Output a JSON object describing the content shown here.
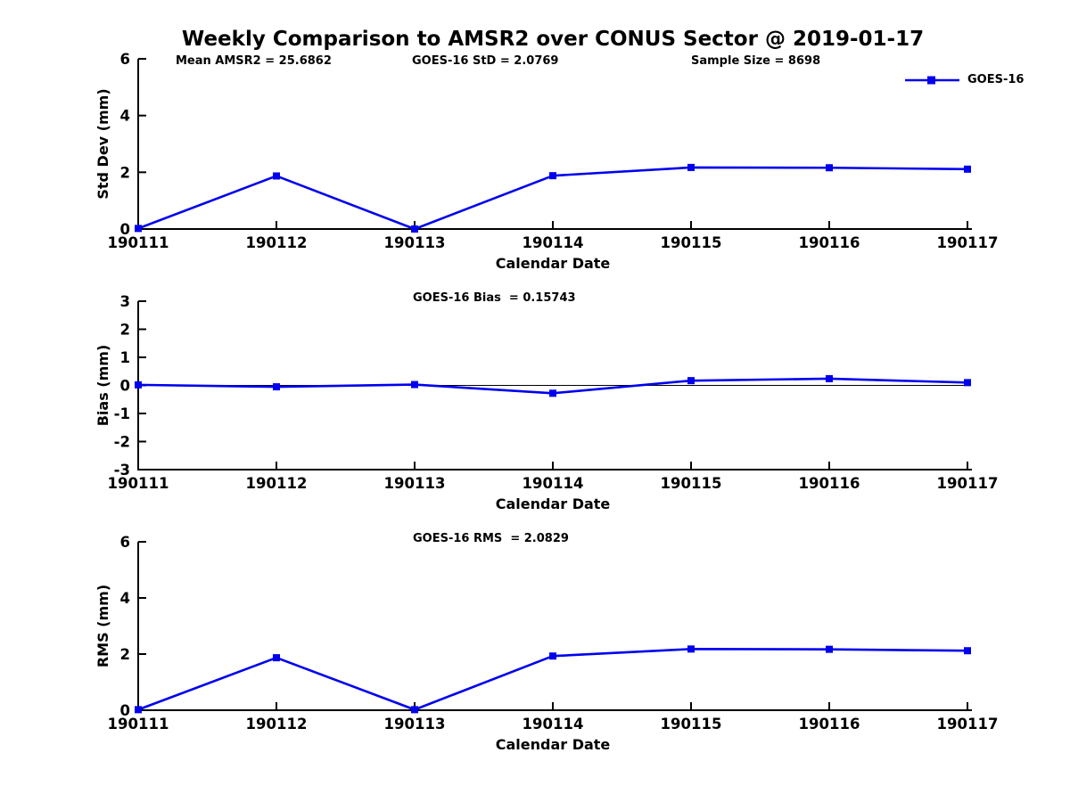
{
  "figure": {
    "title": "Weekly Comparison to AMSR2 over CONUS Sector @ 2019-01-17"
  },
  "colors": {
    "series": "#0000ee",
    "axis": "#000000",
    "text": "#000000",
    "background": "#ffffff"
  },
  "legend": {
    "label": "GOES-16",
    "marker": "filled-square"
  },
  "chart_data": [
    {
      "type": "line",
      "name": "std-dev",
      "annotations": [
        "Mean AMSR2 = 25.6862",
        "GOES-16 StD = 2.0769",
        "Sample Size = 8698"
      ],
      "ylabel": "Std Dev (mm)",
      "xlabel": "Calendar Date",
      "categories": [
        "190111",
        "190112",
        "190113",
        "190114",
        "190115",
        "190116",
        "190117"
      ],
      "series": [
        {
          "name": "GOES-16",
          "values": [
            0.02,
            1.87,
            0.0,
            1.88,
            2.17,
            2.16,
            2.11
          ]
        }
      ],
      "ylim": [
        0,
        6
      ],
      "yticks": [
        0,
        2,
        4,
        6
      ],
      "zero_line": false,
      "grid": false,
      "legend_position": "top-right-outside"
    },
    {
      "type": "line",
      "name": "bias",
      "annotations": [
        "GOES-16 Bias  = 0.15743"
      ],
      "ylabel": "Bias (mm)",
      "xlabel": "Calendar Date",
      "categories": [
        "190111",
        "190112",
        "190113",
        "190114",
        "190115",
        "190116",
        "190117"
      ],
      "series": [
        {
          "name": "GOES-16",
          "values": [
            0.02,
            -0.05,
            0.03,
            -0.28,
            0.17,
            0.24,
            0.1
          ]
        }
      ],
      "ylim": [
        -3,
        3
      ],
      "yticks": [
        -3,
        -2,
        -1,
        0,
        1,
        2,
        3
      ],
      "zero_line": true,
      "grid": false
    },
    {
      "type": "line",
      "name": "rms",
      "annotations": [
        "GOES-16 RMS  = 2.0829"
      ],
      "ylabel": "RMS (mm)",
      "xlabel": "Calendar Date",
      "categories": [
        "190111",
        "190112",
        "190113",
        "190114",
        "190115",
        "190116",
        "190117"
      ],
      "series": [
        {
          "name": "GOES-16",
          "values": [
            0.02,
            1.87,
            0.02,
            1.93,
            2.18,
            2.17,
            2.12
          ]
        }
      ],
      "ylim": [
        0,
        6
      ],
      "yticks": [
        0,
        2,
        4,
        6
      ],
      "zero_line": false,
      "grid": false
    }
  ]
}
